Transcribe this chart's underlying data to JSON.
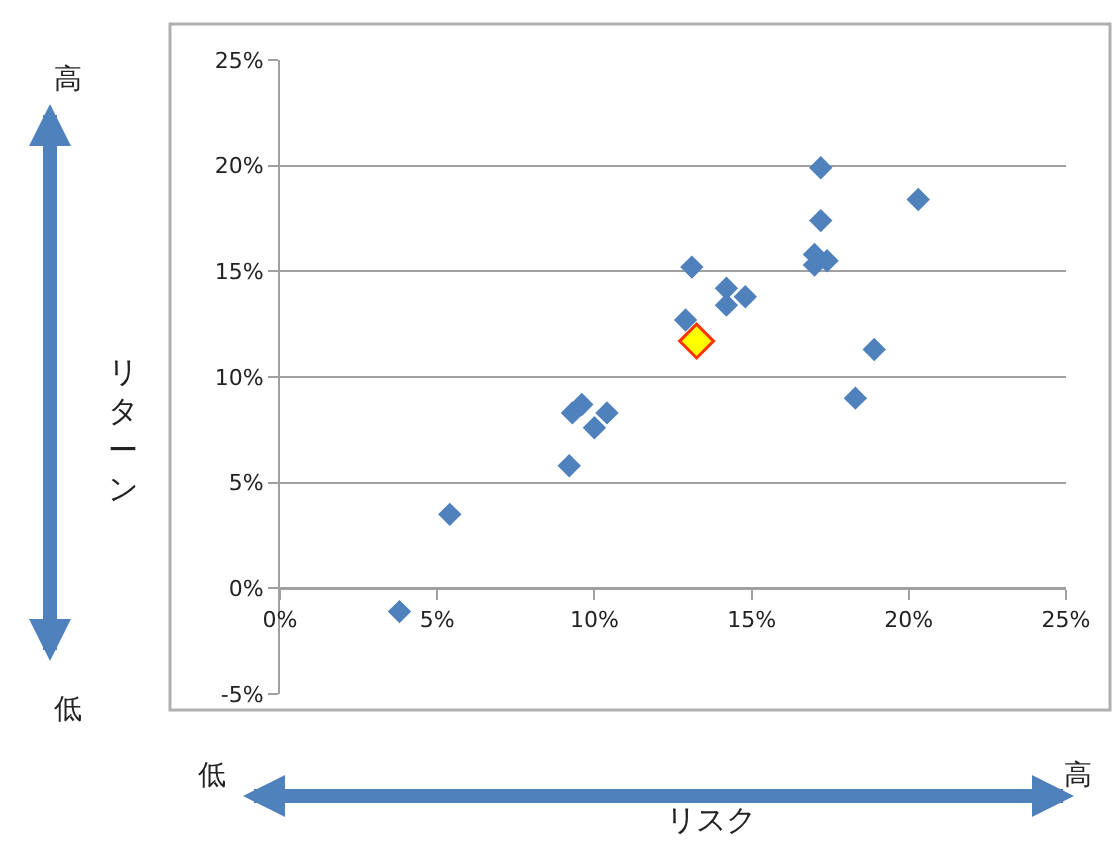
{
  "chart_data": {
    "type": "scatter",
    "xlabel": "リスク",
    "ylabel": "リターン",
    "xlim": [
      0,
      25
    ],
    "xticks": [
      {
        "value": 0,
        "label": "0%"
      },
      {
        "value": 5,
        "label": "5%"
      },
      {
        "value": 10,
        "label": "10%"
      },
      {
        "value": 15,
        "label": "15%"
      },
      {
        "value": 20,
        "label": "20%"
      },
      {
        "value": 25,
        "label": "25%"
      }
    ],
    "ylim": [
      -5,
      25
    ],
    "yticks": [
      {
        "value": -5,
        "label": "-5%"
      },
      {
        "value": 0,
        "label": "0%"
      },
      {
        "value": 5,
        "label": "5%"
      },
      {
        "value": 10,
        "label": "10%"
      },
      {
        "value": 15,
        "label": "15%"
      },
      {
        "value": 20,
        "label": "20%"
      },
      {
        "value": 25,
        "label": "25%"
      }
    ],
    "grid": "y",
    "marker": "diamond",
    "series": [
      {
        "color": "#4f81bd",
        "x": [
          3.8,
          5.4,
          9.2,
          9.3,
          9.6,
          10.0,
          10.4,
          12.9,
          13.1,
          14.2,
          14.2,
          14.8,
          17.0,
          17.0,
          17.4,
          17.2,
          17.2,
          18.3,
          18.9,
          20.3
        ],
        "values": [
          -1.1,
          3.5,
          5.8,
          8.3,
          8.7,
          7.6,
          8.3,
          12.7,
          15.2,
          14.2,
          13.4,
          13.8,
          15.8,
          15.3,
          15.5,
          19.9,
          17.4,
          9.0,
          11.3,
          18.4
        ]
      },
      {
        "color": "#ffff00",
        "x": [
          13.25
        ],
        "values": [
          11.7
        ]
      }
    ],
    "annotations": [
      "高",
      "低",
      "低",
      "高"
    ]
  }
}
